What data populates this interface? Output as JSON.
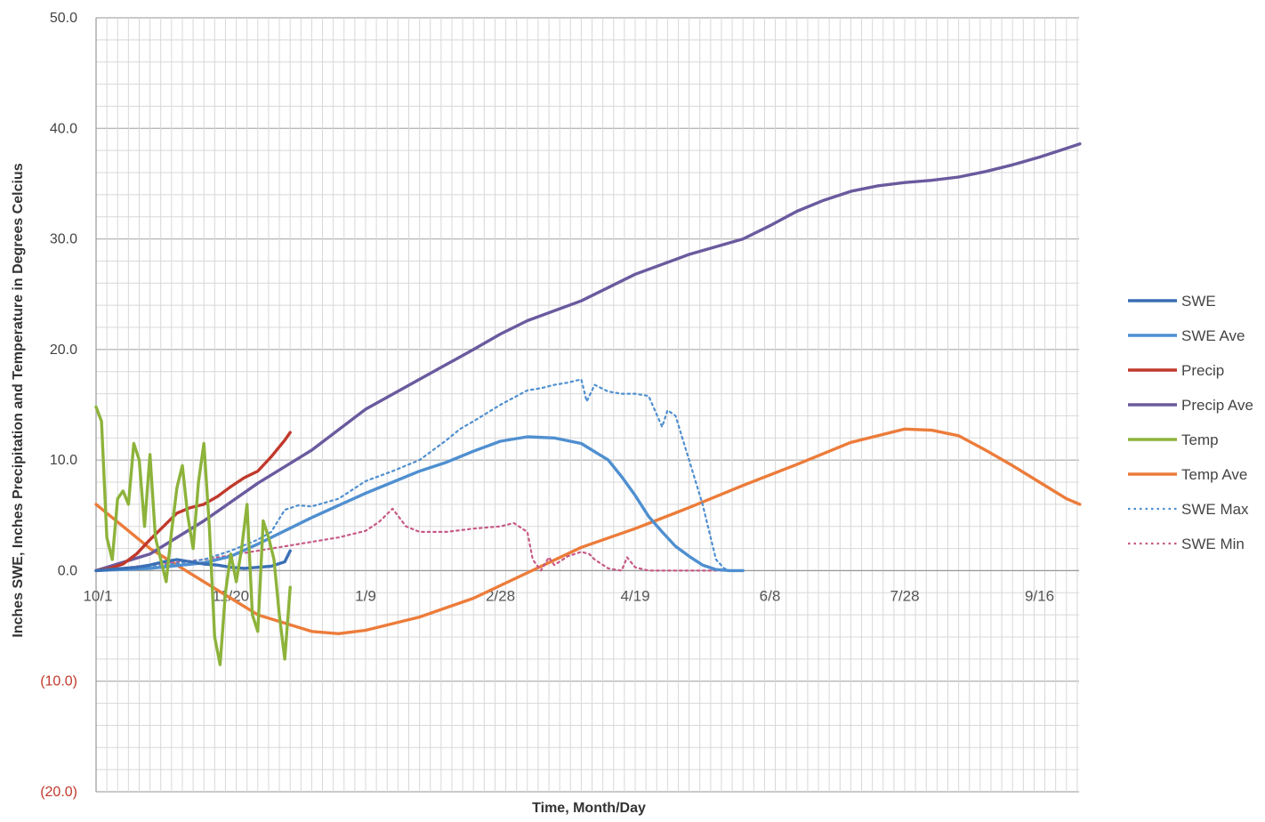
{
  "chart_data": {
    "type": "line",
    "xlabel": "Time, Month/Day",
    "ylabel": "Inches SWE, Inches Precipitation and Temperature in Degrees Celcius",
    "x_tick_labels": [
      "10/1",
      "11/20",
      "1/9",
      "2/28",
      "4/19",
      "6/8",
      "7/28",
      "9/16"
    ],
    "x_tick_days": [
      0,
      50,
      100,
      150,
      200,
      250,
      300,
      350
    ],
    "xlim_days": [
      0,
      365
    ],
    "y_ticks": [
      {
        "value": 50,
        "label": "50.0"
      },
      {
        "value": 40,
        "label": "40.0"
      },
      {
        "value": 30,
        "label": "30.0"
      },
      {
        "value": 20,
        "label": "20.0"
      },
      {
        "value": 10,
        "label": "10.0"
      },
      {
        "value": 0,
        "label": "0.0"
      },
      {
        "value": -10,
        "label": "(10.0)"
      },
      {
        "value": -20,
        "label": "(20.0)"
      }
    ],
    "ylim": [
      -20,
      50
    ],
    "grid": true,
    "legend_position": "right",
    "series": [
      {
        "name": "SWE",
        "color": "#3a6fb5",
        "dash": "solid",
        "x": [
          0,
          5,
          10,
          15,
          20,
          25,
          30,
          35,
          40,
          45,
          50,
          55,
          60,
          65,
          70,
          72
        ],
        "y": [
          0,
          0.1,
          0.2,
          0.3,
          0.5,
          0.8,
          1.0,
          0.8,
          0.6,
          0.5,
          0.3,
          0.2,
          0.3,
          0.4,
          0.8,
          1.8
        ]
      },
      {
        "name": "SWE Ave",
        "color": "#4f8fd0",
        "dash": "solid",
        "x": [
          0,
          20,
          40,
          50,
          60,
          70,
          80,
          90,
          100,
          110,
          120,
          130,
          140,
          150,
          160,
          170,
          180,
          190,
          195,
          200,
          205,
          210,
          215,
          220,
          225,
          230,
          235,
          240
        ],
        "y": [
          0,
          0.2,
          0.7,
          1.3,
          2.4,
          3.6,
          4.8,
          5.9,
          7.0,
          8.0,
          9.0,
          9.8,
          10.8,
          11.7,
          12.1,
          12.0,
          11.5,
          10.0,
          8.5,
          6.8,
          4.9,
          3.5,
          2.2,
          1.3,
          0.5,
          0.1,
          0,
          0
        ]
      },
      {
        "name": "Precip",
        "color": "#c0392b",
        "dash": "solid",
        "x": [
          0,
          5,
          10,
          15,
          20,
          25,
          30,
          35,
          40,
          45,
          50,
          55,
          60,
          65,
          70,
          72
        ],
        "y": [
          0,
          0.2,
          0.6,
          1.5,
          2.8,
          4.0,
          5.2,
          5.7,
          6.0,
          6.7,
          7.6,
          8.4,
          9.0,
          10.3,
          11.8,
          12.5
        ]
      },
      {
        "name": "Precip Ave",
        "color": "#6a5a9e",
        "dash": "solid",
        "x": [
          0,
          20,
          40,
          60,
          80,
          100,
          120,
          140,
          150,
          160,
          180,
          200,
          220,
          240,
          250,
          260,
          270,
          280,
          290,
          300,
          310,
          320,
          330,
          340,
          350,
          360,
          365
        ],
        "y": [
          0,
          1.5,
          4.5,
          7.9,
          10.9,
          14.6,
          17.3,
          20.0,
          21.4,
          22.6,
          24.4,
          26.8,
          28.6,
          30.0,
          31.2,
          32.5,
          33.5,
          34.3,
          34.8,
          35.1,
          35.3,
          35.6,
          36.1,
          36.7,
          37.4,
          38.2,
          38.6
        ]
      },
      {
        "name": "Temp",
        "color": "#8db33b",
        "dash": "solid",
        "x": [
          0,
          2,
          4,
          6,
          8,
          10,
          12,
          14,
          16,
          18,
          20,
          22,
          24,
          26,
          28,
          30,
          32,
          34,
          36,
          38,
          40,
          42,
          44,
          46,
          48,
          50,
          52,
          54,
          56,
          58,
          60,
          62,
          64,
          66,
          68,
          70,
          72
        ],
        "y": [
          14.8,
          13.5,
          3.0,
          1.0,
          6.5,
          7.2,
          6.0,
          11.5,
          10.0,
          4.0,
          10.5,
          3.0,
          1.0,
          -1.0,
          3.5,
          7.5,
          9.5,
          5.0,
          2.0,
          8.0,
          11.5,
          4.0,
          -6.0,
          -8.5,
          -2.0,
          1.5,
          -1.0,
          2.0,
          6.0,
          -4.0,
          -5.5,
          4.5,
          3.0,
          1.0,
          -4.0,
          -8.0,
          -1.5
        ]
      },
      {
        "name": "Temp Ave",
        "color": "#ec7c3a",
        "dash": "solid",
        "x": [
          0,
          20,
          40,
          60,
          80,
          90,
          100,
          120,
          140,
          160,
          180,
          200,
          220,
          240,
          260,
          280,
          300,
          310,
          320,
          330,
          340,
          350,
          360,
          365
        ],
        "y": [
          6.0,
          2.0,
          -1.0,
          -4.0,
          -5.5,
          -5.7,
          -5.4,
          -4.2,
          -2.5,
          -0.2,
          2.1,
          3.8,
          5.7,
          7.7,
          9.6,
          11.6,
          12.8,
          12.7,
          12.2,
          10.9,
          9.5,
          8.0,
          6.5,
          6.0
        ]
      },
      {
        "name": "SWE Max",
        "color": "#4f8fd0",
        "dash": "dotted",
        "x": [
          0,
          20,
          40,
          50,
          60,
          65,
          70,
          75,
          80,
          90,
          100,
          110,
          120,
          130,
          135,
          140,
          150,
          160,
          165,
          170,
          175,
          180,
          182,
          185,
          190,
          195,
          200,
          205,
          210,
          212,
          215,
          220,
          225,
          228,
          230,
          233,
          235
        ],
        "y": [
          0,
          0.3,
          1.0,
          1.8,
          2.8,
          3.5,
          5.5,
          5.9,
          5.8,
          6.5,
          8.1,
          9.0,
          10.0,
          11.8,
          12.8,
          13.5,
          15.0,
          16.3,
          16.5,
          16.8,
          17.0,
          17.3,
          15.3,
          16.8,
          16.2,
          16.0,
          16.0,
          15.8,
          13.0,
          14.5,
          14.0,
          10.0,
          6.0,
          3.0,
          1.0,
          0.2,
          0
        ]
      },
      {
        "name": "SWE Min",
        "color": "#c75a86",
        "dash": "dotted",
        "x": [
          0,
          20,
          40,
          60,
          70,
          80,
          90,
          100,
          105,
          110,
          115,
          120,
          130,
          140,
          150,
          155,
          160,
          162,
          165,
          168,
          170,
          175,
          180,
          183,
          185,
          190,
          195,
          197,
          200,
          205,
          210,
          220,
          240
        ],
        "y": [
          0,
          0.5,
          1.0,
          1.8,
          2.2,
          2.6,
          3.0,
          3.6,
          4.4,
          5.6,
          4.0,
          3.5,
          3.5,
          3.8,
          4.0,
          4.3,
          3.5,
          1.0,
          0,
          1.2,
          0.5,
          1.3,
          1.7,
          1.5,
          1.0,
          0.2,
          0,
          1.2,
          0.3,
          0,
          0,
          0,
          0
        ]
      }
    ]
  }
}
